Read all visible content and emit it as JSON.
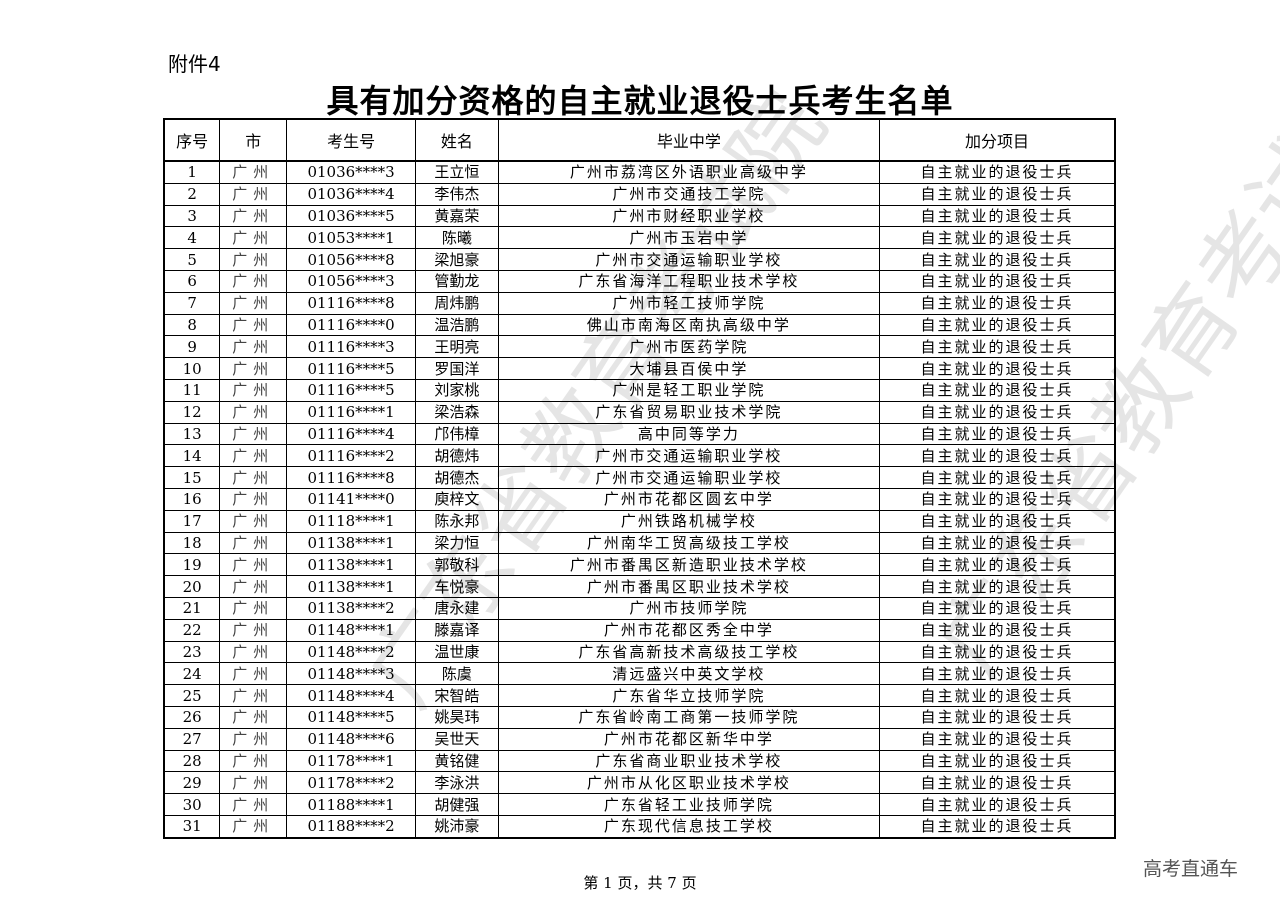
{
  "attachment": "附件4",
  "title": "具有加分资格的自主就业退役士兵考生名单",
  "headers": [
    "序号",
    "市",
    "考生号",
    "姓名",
    "毕业中学",
    "加分项目"
  ],
  "rows": [
    [
      "1",
      "广州",
      "01036****3",
      "王立恒",
      "广州市荔湾区外语职业高级中学",
      "自主就业的退役士兵"
    ],
    [
      "2",
      "广州",
      "01036****4",
      "李伟杰",
      "广州市交通技工学院",
      "自主就业的退役士兵"
    ],
    [
      "3",
      "广州",
      "01036****5",
      "黄嘉荣",
      "广州市财经职业学校",
      "自主就业的退役士兵"
    ],
    [
      "4",
      "广州",
      "01053****1",
      "陈曦",
      "广州市玉岩中学",
      "自主就业的退役士兵"
    ],
    [
      "5",
      "广州",
      "01056****8",
      "梁旭豪",
      "广州市交通运输职业学校",
      "自主就业的退役士兵"
    ],
    [
      "6",
      "广州",
      "01056****3",
      "管勤龙",
      "广东省海洋工程职业技术学校",
      "自主就业的退役士兵"
    ],
    [
      "7",
      "广州",
      "01116****8",
      "周炜鹏",
      "广州市轻工技师学院",
      "自主就业的退役士兵"
    ],
    [
      "8",
      "广州",
      "01116****0",
      "温浩鹏",
      "佛山市南海区南执高级中学",
      "自主就业的退役士兵"
    ],
    [
      "9",
      "广州",
      "01116****3",
      "王明亮",
      "广州市医药学院",
      "自主就业的退役士兵"
    ],
    [
      "10",
      "广州",
      "01116****5",
      "罗国洋",
      "大埔县百侯中学",
      "自主就业的退役士兵"
    ],
    [
      "11",
      "广州",
      "01116****5",
      "刘家桃",
      "广州是轻工职业学院",
      "自主就业的退役士兵"
    ],
    [
      "12",
      "广州",
      "01116****1",
      "梁浩森",
      "广东省贸易职业技术学院",
      "自主就业的退役士兵"
    ],
    [
      "13",
      "广州",
      "01116****4",
      "邝伟樟",
      "高中同等学力",
      "自主就业的退役士兵"
    ],
    [
      "14",
      "广州",
      "01116****2",
      "胡德炜",
      "广州市交通运输职业学校",
      "自主就业的退役士兵"
    ],
    [
      "15",
      "广州",
      "01116****8",
      "胡德杰",
      "广州市交通运输职业学校",
      "自主就业的退役士兵"
    ],
    [
      "16",
      "广州",
      "01141****0",
      "庾梓文",
      "广州市花都区圆玄中学",
      "自主就业的退役士兵"
    ],
    [
      "17",
      "广州",
      "01118****1",
      "陈永邦",
      "广州铁路机械学校",
      "自主就业的退役士兵"
    ],
    [
      "18",
      "广州",
      "01138****1",
      "梁力恒",
      "广州南华工贸高级技工学校",
      "自主就业的退役士兵"
    ],
    [
      "19",
      "广州",
      "01138****1",
      "郭敬科",
      "广州市番禺区新造职业技术学校",
      "自主就业的退役士兵"
    ],
    [
      "20",
      "广州",
      "01138****1",
      "车悦豪",
      "广州市番禺区职业技术学校",
      "自主就业的退役士兵"
    ],
    [
      "21",
      "广州",
      "01138****2",
      "唐永建",
      "广州市技师学院",
      "自主就业的退役士兵"
    ],
    [
      "22",
      "广州",
      "01148****1",
      "滕嘉译",
      "广州市花都区秀全中学",
      "自主就业的退役士兵"
    ],
    [
      "23",
      "广州",
      "01148****2",
      "温世康",
      "广东省高新技术高级技工学校",
      "自主就业的退役士兵"
    ],
    [
      "24",
      "广州",
      "01148****3",
      "陈虞",
      "清远盛兴中英文学校",
      "自主就业的退役士兵"
    ],
    [
      "25",
      "广州",
      "01148****4",
      "宋智皓",
      "广东省华立技师学院",
      "自主就业的退役士兵"
    ],
    [
      "26",
      "广州",
      "01148****5",
      "姚昊玮",
      "广东省岭南工商第一技师学院",
      "自主就业的退役士兵"
    ],
    [
      "27",
      "广州",
      "01148****6",
      "吴世天",
      "广州市花都区新华中学",
      "自主就业的退役士兵"
    ],
    [
      "28",
      "广州",
      "01178****1",
      "黄铭健",
      "广东省商业职业技术学校",
      "自主就业的退役士兵"
    ],
    [
      "29",
      "广州",
      "01178****2",
      "李泳洪",
      "广州市从化区职业技术学校",
      "自主就业的退役士兵"
    ],
    [
      "30",
      "广州",
      "01188****1",
      "胡健强",
      "广东省轻工业技师学院",
      "自主就业的退役士兵"
    ],
    [
      "31",
      "广州",
      "01188****2",
      "姚沛豪",
      "广东现代信息技工学校",
      "自主就业的退役士兵"
    ]
  ],
  "footer": "第 1 页，共 7 页",
  "brand": "高考直通车",
  "watermark": "广东省教育考试院"
}
